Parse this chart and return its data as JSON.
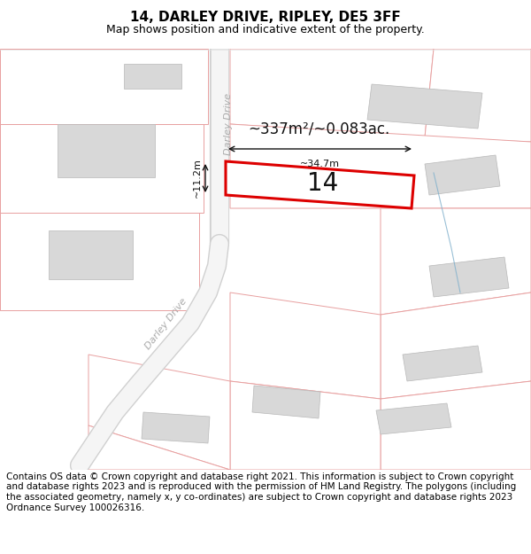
{
  "title": "14, DARLEY DRIVE, RIPLEY, DE5 3FF",
  "subtitle": "Map shows position and indicative extent of the property.",
  "footer": "Contains OS data © Crown copyright and database right 2021. This information is subject to Crown copyright and database rights 2023 and is reproduced with the permission of HM Land Registry. The polygons (including the associated geometry, namely x, y co-ordinates) are subject to Crown copyright and database rights 2023 Ordnance Survey 100026316.",
  "map_bg": "#ffffff",
  "page_bg": "#ffffff",
  "road_fill": "#f0f0f0",
  "road_line": "#cccccc",
  "parcel_edge": "#e08080",
  "parcel_edge_light": "#e8a0a0",
  "building_fill": "#d8d8d8",
  "building_edge": "#b8b8b8",
  "highlight_color": "#dd0000",
  "highlight_fill": "#ffffff",
  "dim_color": "#111111",
  "road_label_color": "#aaaaaa",
  "blue_line": "#80b0cc",
  "area_text": "~337m²/~0.083ac.",
  "number_text": "14",
  "dim_width": "~34.7m",
  "dim_height": "~11.2m",
  "title_fontsize": 11,
  "subtitle_fontsize": 9,
  "footer_fontsize": 7.5
}
